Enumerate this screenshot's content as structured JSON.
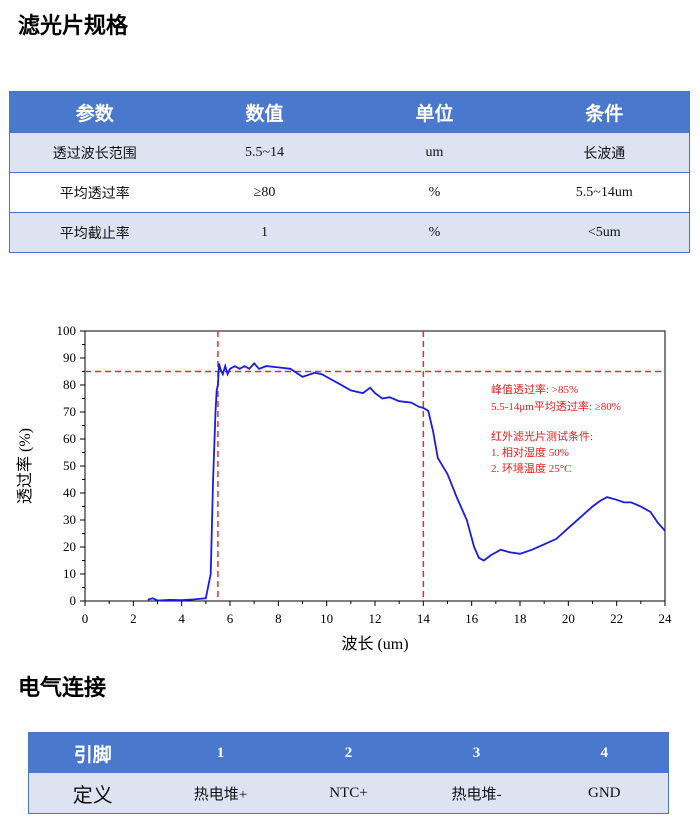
{
  "spec_section": {
    "title": "滤光片规格",
    "headers": [
      "参数",
      "数值",
      "单位",
      "条件"
    ],
    "rows": [
      [
        "透过波长范围",
        "5.5~14",
        "um",
        "长波通"
      ],
      [
        "平均透过率",
        "≥80",
        "%",
        "5.5~14um"
      ],
      [
        "平均截止率",
        "1",
        "%",
        "<5um"
      ]
    ]
  },
  "chart_data": {
    "type": "line",
    "xlabel": "波长 (um)",
    "ylabel": "透过率 (%)",
    "xlim": [
      0,
      24
    ],
    "ylim": [
      0,
      100
    ],
    "x_ticks": [
      0,
      2,
      4,
      6,
      8,
      10,
      12,
      14,
      16,
      18,
      20,
      22,
      24
    ],
    "y_ticks": [
      0,
      10,
      20,
      30,
      40,
      50,
      60,
      70,
      80,
      90,
      100
    ],
    "series": [
      {
        "color": "#1a1ae6",
        "x": [
          2.6,
          2.8,
          3.0,
          3.5,
          4.0,
          4.5,
          5.0,
          5.2,
          5.3,
          5.4,
          5.45,
          5.5,
          5.55,
          5.6,
          5.7,
          5.8,
          5.9,
          6.0,
          6.2,
          6.4,
          6.6,
          6.8,
          7.0,
          7.2,
          7.5,
          8.0,
          8.5,
          9.0,
          9.5,
          9.8,
          10.2,
          10.5,
          11.0,
          11.5,
          11.8,
          12.0,
          12.3,
          12.6,
          13.0,
          13.5,
          13.8,
          14.0,
          14.2,
          14.4,
          14.6,
          15.0,
          15.4,
          15.8,
          16.1,
          16.3,
          16.5,
          16.8,
          17.2,
          17.6,
          18.0,
          18.5,
          19.0,
          19.5,
          20.0,
          20.5,
          21.0,
          21.3,
          21.6,
          22.0,
          22.3,
          22.6,
          23.0,
          23.4,
          23.7,
          24.0
        ],
        "y": [
          0.5,
          1.0,
          0.2,
          0.4,
          0.3,
          0.6,
          1.0,
          10,
          45,
          70,
          78,
          80,
          88,
          86,
          84,
          87,
          84,
          86,
          87,
          86,
          87,
          86,
          88,
          86,
          87,
          86.5,
          86,
          83,
          84.5,
          84,
          82,
          80.5,
          78,
          77,
          79,
          77,
          75,
          75.5,
          74,
          73.5,
          72,
          71.5,
          70.5,
          63,
          53,
          47,
          38,
          30,
          20,
          16,
          15,
          17,
          19,
          18,
          17.5,
          19,
          21,
          23,
          27,
          31,
          35,
          37,
          38.5,
          37.5,
          36.5,
          36.5,
          35,
          33,
          29,
          26
        ]
      }
    ],
    "reference_lines": {
      "horizontal_y": 85,
      "vertical_x": [
        5.5,
        14
      ],
      "color": "#e63030"
    },
    "annotations": [
      "峰值透过率: >85%",
      "5.5-14μm平均透过率: ≥80%",
      "红外滤光片测试条件:",
      "1. 相对湿度 50%",
      "2. 环境温度 25°C"
    ]
  },
  "connection_section": {
    "title": "电气连接",
    "header": [
      "引脚",
      "1",
      "2",
      "3",
      "4"
    ],
    "row": [
      "定义",
      "热电堆+",
      "NTC+",
      "热电堆-",
      "GND"
    ]
  }
}
